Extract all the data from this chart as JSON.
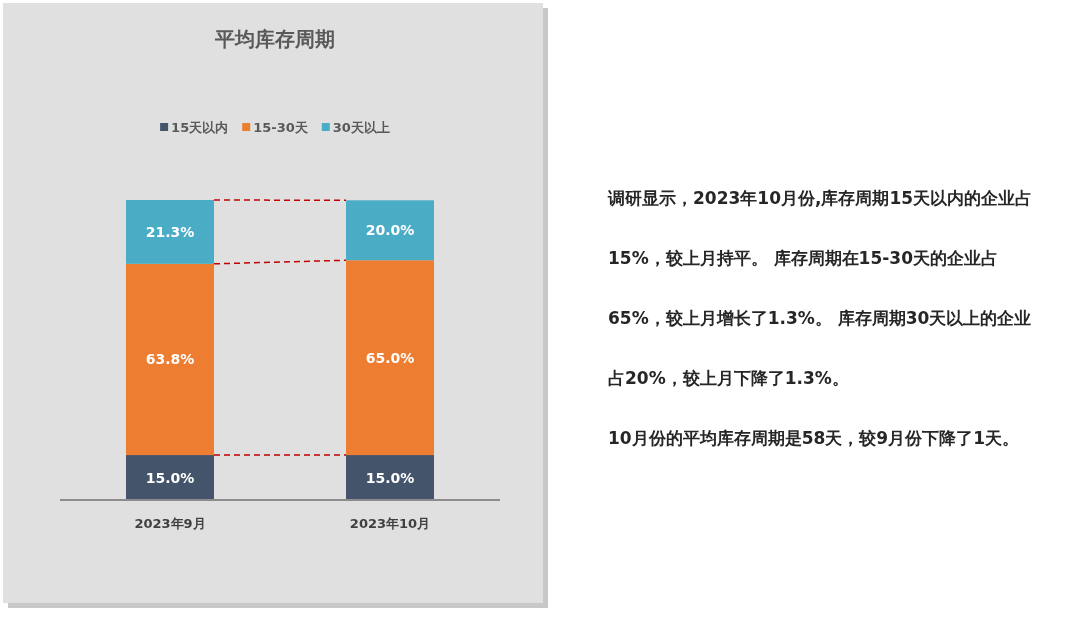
{
  "chart_data": {
    "type": "bar",
    "stacked": true,
    "title": "平均库存周期",
    "categories": [
      "2023年9月",
      "2023年10月"
    ],
    "series": [
      {
        "name": "15天以内",
        "color": "#44546a",
        "values": [
          15.0,
          15.0
        ],
        "value_labels": [
          "15.0%",
          "15.0%"
        ]
      },
      {
        "name": "15-30天",
        "color": "#ed7d31",
        "values": [
          63.8,
          65.0
        ],
        "value_labels": [
          "63.8%",
          "65.0%"
        ]
      },
      {
        "name": "30天以上",
        "color": "#4bacc6",
        "values": [
          21.3,
          20.0
        ],
        "value_labels": [
          "21.3%",
          "20.0%"
        ]
      }
    ],
    "legend": "top",
    "annotations": [
      "调研显示，2023年10月份,库存周期15天以内的企业占15%，较上月持平。 库存周期在15-30天的企业占65%，较上月增长了1.3%。 库存周期30天以上的企业占20%，较上月下降了1.3%。",
      "10月份的平均库存周期是58天，较9月份下降了1天。"
    ]
  }
}
